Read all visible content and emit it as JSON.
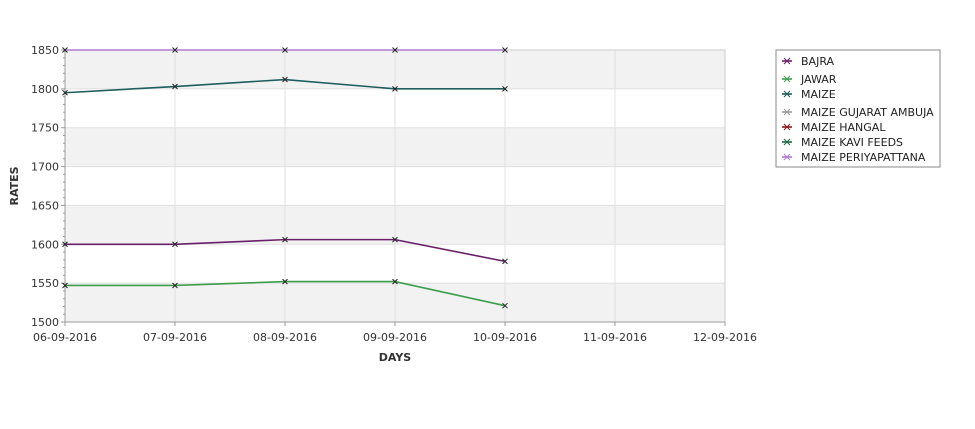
{
  "chart_data": {
    "type": "line",
    "title": "",
    "xlabel": "DAYS",
    "ylabel": "RATES",
    "x_ticks": [
      "06-09-2016",
      "07-09-2016",
      "08-09-2016",
      "09-09-2016",
      "10-09-2016",
      "11-09-2016",
      "12-09-2016"
    ],
    "y_ticks": [
      1500,
      1550,
      1600,
      1650,
      1700,
      1750,
      1800,
      1850
    ],
    "ylim": [
      1500,
      1850
    ],
    "grid": true,
    "legend_position": "right",
    "series": [
      {
        "name": "BAJRA",
        "color": "#6a1f6a",
        "values": [
          1600,
          1600,
          1606,
          1606,
          1578
        ]
      },
      {
        "name": "JAWAR",
        "color": "#3d9e4e",
        "values": [
          1547,
          1547,
          1552,
          1552,
          1521
        ]
      },
      {
        "name": "MAIZE",
        "color": "#1f5e5e",
        "values": [
          1795,
          1803,
          1812,
          1800,
          1800
        ]
      },
      {
        "name": "MAIZE GUJARAT AMBUJA",
        "color": "#9a9a9a",
        "values": []
      },
      {
        "name": "MAIZE HANGAL",
        "color": "#8b1a1a",
        "values": []
      },
      {
        "name": "MAIZE KAVI FEEDS",
        "color": "#1f6a3e",
        "values": []
      },
      {
        "name": "MAIZE PERIYAPATTANA",
        "color": "#b07ad0",
        "values": [
          1850,
          1850,
          1850,
          1850,
          1850
        ]
      }
    ]
  }
}
